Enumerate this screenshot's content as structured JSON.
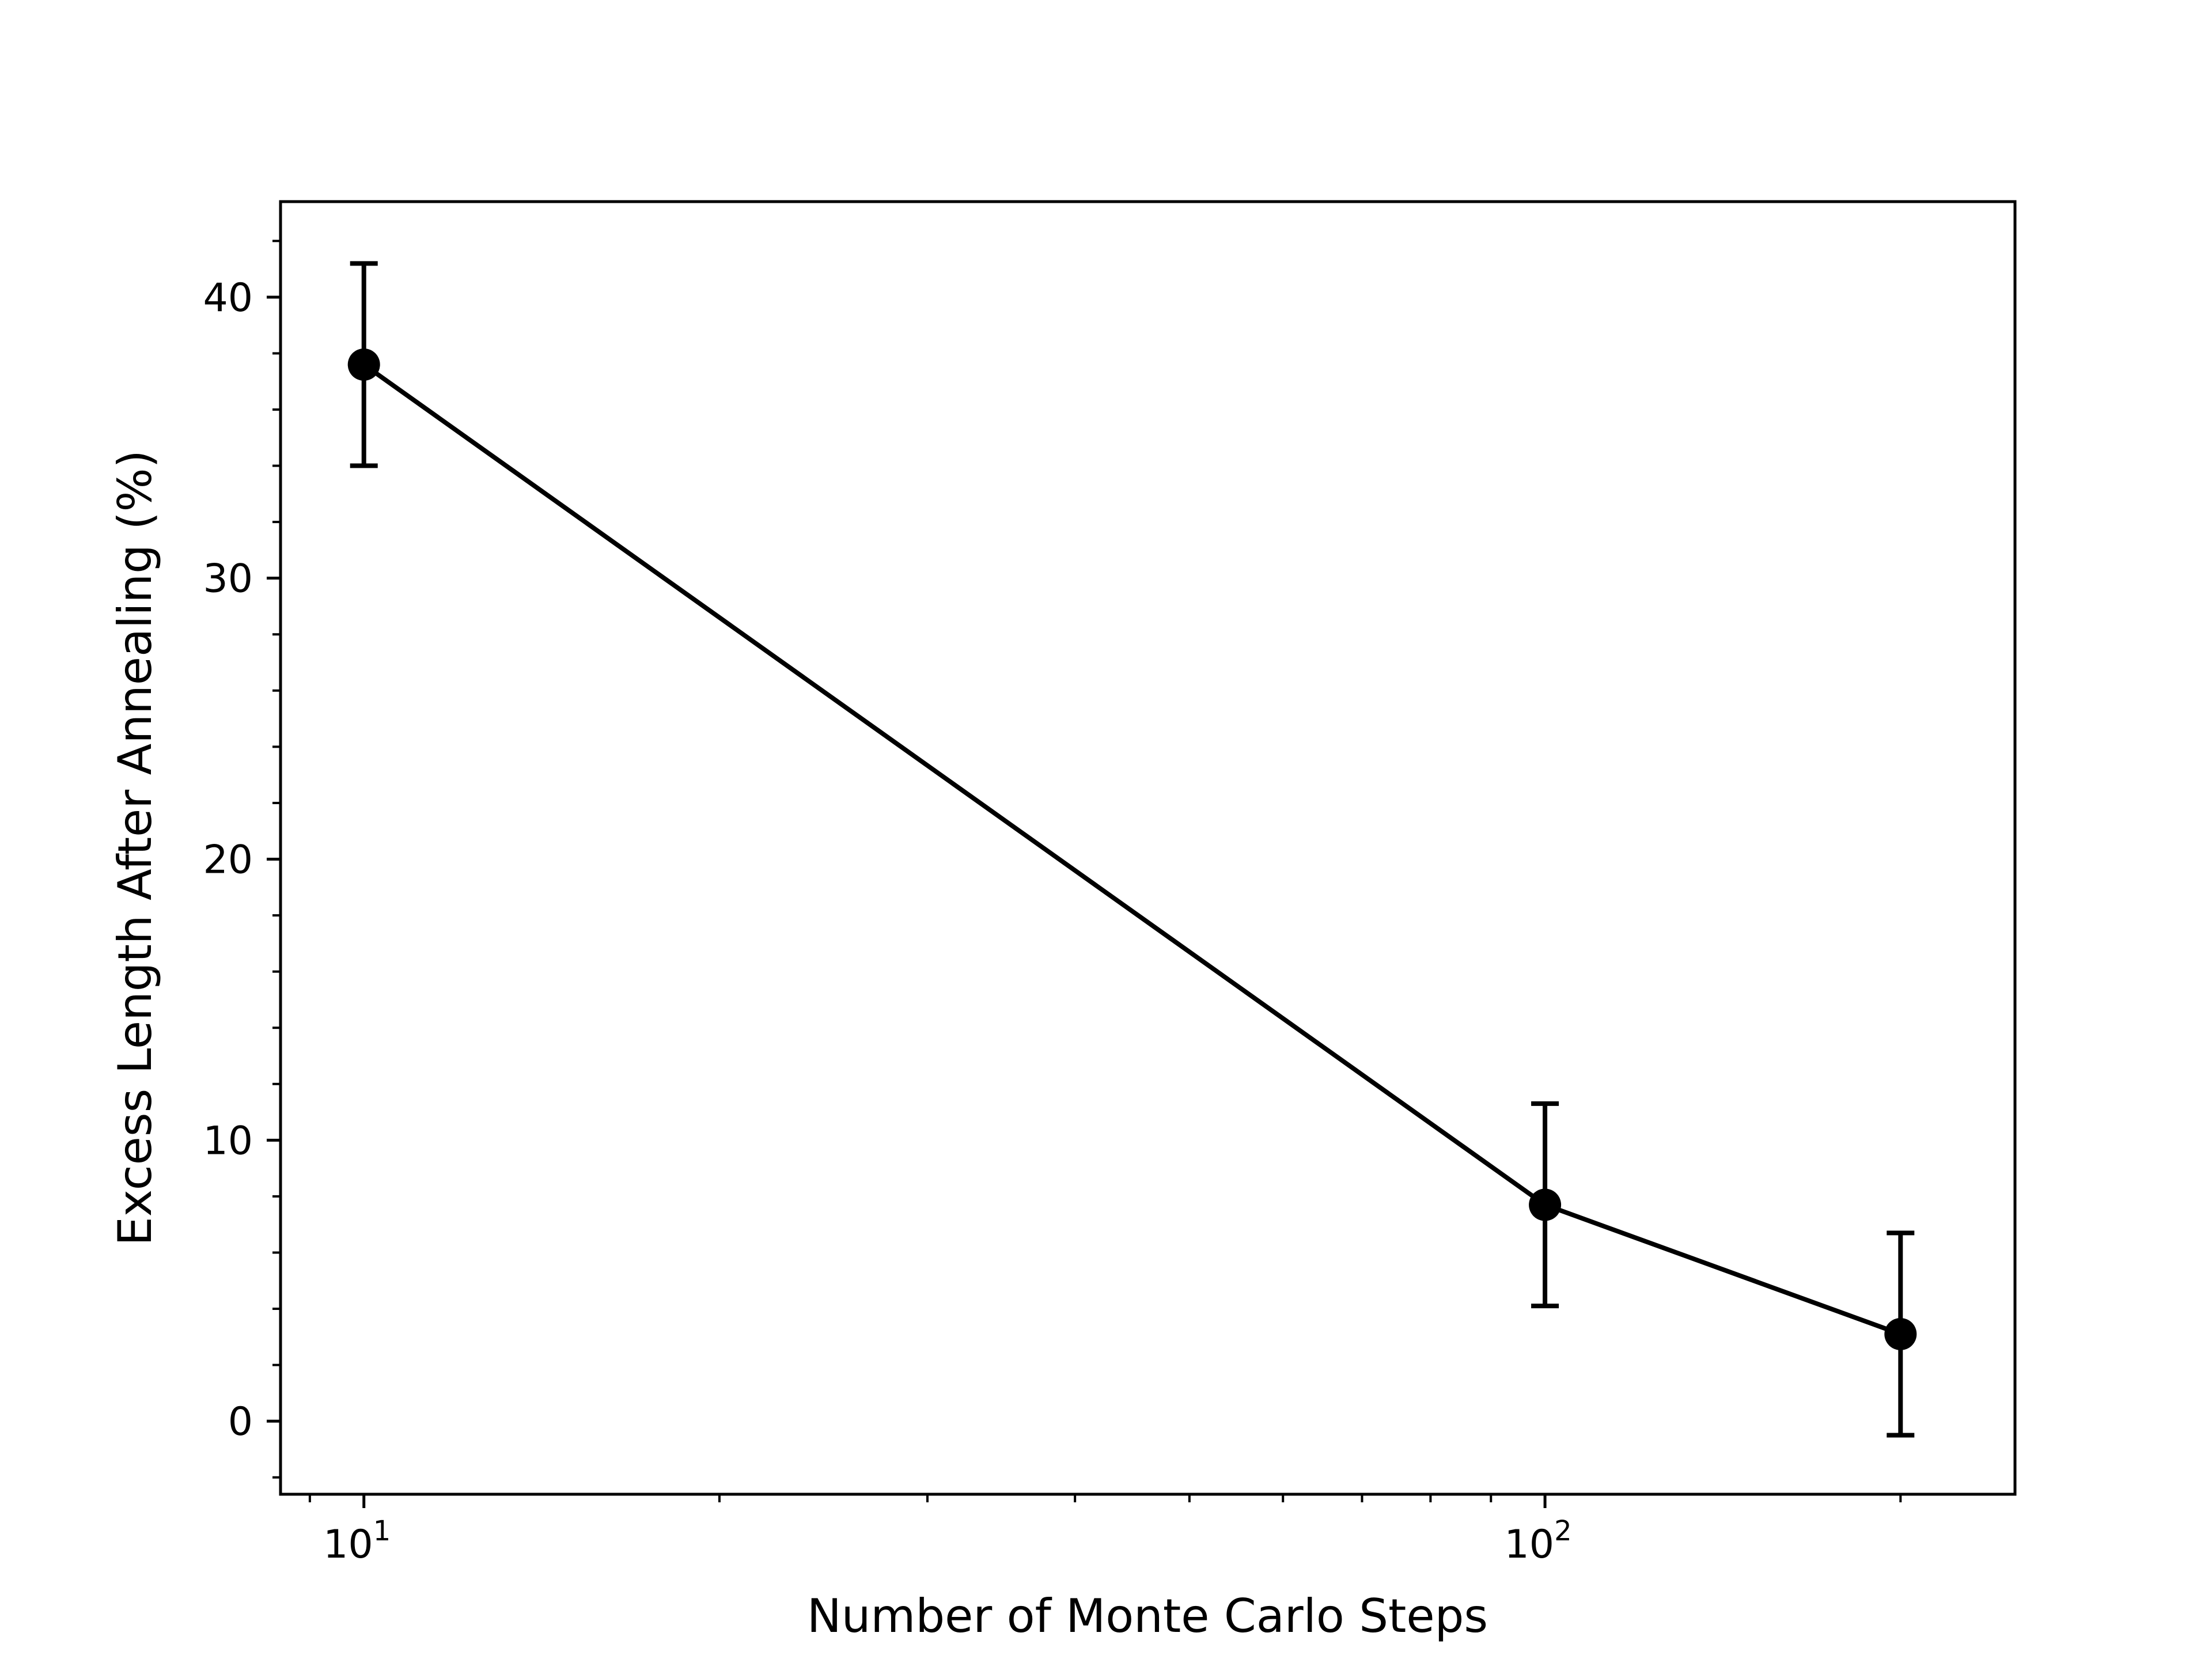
{
  "chart_data": {
    "type": "line",
    "title": "",
    "xlabel": "Number of Monte Carlo Steps",
    "ylabel": "Excess Length After Annealing (%)",
    "x_scale": "log",
    "xlim": [
      8.5,
      250
    ],
    "ylim": [
      -2.6,
      43.4
    ],
    "grid": false,
    "legend": "none",
    "x_ticks": [
      {
        "value": 10,
        "base": "10",
        "exp": "1"
      },
      {
        "value": 100,
        "base": "10",
        "exp": "2"
      }
    ],
    "y_ticks": [
      0,
      10,
      20,
      30,
      40
    ],
    "series": [
      {
        "color": "#000000",
        "marker": "circle",
        "points": [
          {
            "x": 10,
            "y": 37.6,
            "err": 3.6
          },
          {
            "x": 100,
            "y": 7.7,
            "err": 3.6
          },
          {
            "x": 200,
            "y": 3.1,
            "err": 3.6
          }
        ]
      }
    ]
  }
}
